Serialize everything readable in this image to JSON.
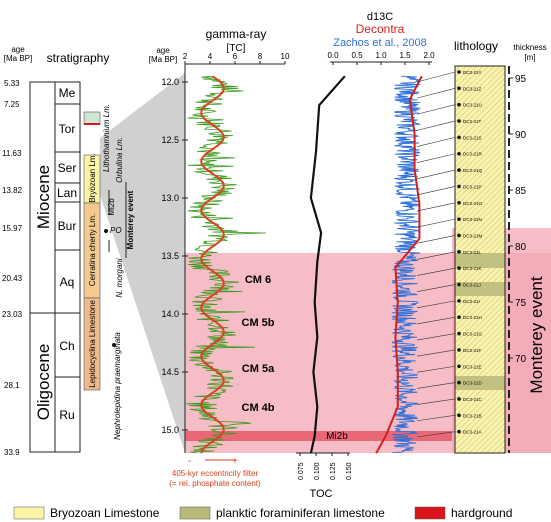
{
  "left_panel": {
    "age_header": [
      "age",
      "[Ma BP]"
    ],
    "title": "stratigraphy",
    "ages": [
      "5.33",
      "7.25",
      "11.63",
      "13.82",
      "15.97",
      "20.43",
      "23.03",
      "28.1",
      "33.9"
    ],
    "epochs": [
      "Miocene",
      "Oligocene"
    ],
    "stages": [
      "Me",
      "Tor",
      "Ser",
      "Lan",
      "Bur",
      "Aq",
      "Ch",
      "Ru"
    ],
    "units": [
      "Bryozoan Lm.",
      "Cerratina cherty Lm.",
      "Lepidocyclina Limestone"
    ],
    "unit_labels": [
      "Lithothamnium Lm.",
      "Orbulina Lm.",
      "Mi2b",
      "Monterey event",
      "PO",
      "N. morgani",
      "Nephrolepidina praemarginata"
    ]
  },
  "gamma_panel": {
    "title": "gamma-ray",
    "unit": "[TC]",
    "x_ticks": [
      "2",
      "4",
      "6",
      "8",
      "10"
    ],
    "age_header": [
      "age",
      "[Ma BP]"
    ],
    "age_ticks": [
      "12.0",
      "12.5",
      "13.0",
      "13.5",
      "14.0",
      "14.5",
      "15.0"
    ],
    "cm_labels": [
      "CM 6",
      "CM 5b",
      "CM 5a",
      "CM 4b"
    ],
    "filter_caption": "405-kyr eccentricity filter",
    "filter_subcaption": "(= rel. phosphate content)",
    "minus": "-",
    "plus": "+"
  },
  "d13c_panel": {
    "title": "d13C",
    "series_a": "Decontra",
    "series_b": "Zachos et al., 2008",
    "x_ticks": [
      "0.0",
      "0.5",
      "1.0",
      "1.5",
      "2.0"
    ],
    "mi2b": "Mi2b",
    "toc_ticks": [
      "0.075",
      "0.100",
      "0.125",
      "0.150"
    ],
    "toc_label": "TOC"
  },
  "lithology_panel": {
    "title": "lithology",
    "thickness_header": [
      "thickness",
      "[m]"
    ],
    "thickness_ticks": [
      "95",
      "90",
      "85",
      "80",
      "75",
      "70"
    ],
    "monterey": "Monterey event",
    "samples": [
      "DC3-21Y",
      "DC3-21Z",
      "DC3-21U",
      "DC3-21T",
      "DC3-21S",
      "DC3-21R",
      "DC3-21Q",
      "DC3-21P",
      "DC3-21O",
      "DC3-21N",
      "DC3-21M",
      "DC3-21L",
      "DC3-21K",
      "DC3-21J",
      "DC3-21I",
      "DC3-21H",
      "DC3-21G",
      "DC3-21F",
      "DC3-21E",
      "DC3-21D",
      "DC3-21C",
      "DC3-21B",
      "DC3-21A"
    ]
  },
  "legend": [
    {
      "label": "Bryozoan Limestone",
      "color": "#fbf3a6"
    },
    {
      "label": "planktic foraminiferan limestone",
      "color": "#b9b97a"
    },
    {
      "label": "hardground",
      "color": "#d9141c"
    }
  ],
  "colors": {
    "monterey_band": "#f4a7b4",
    "mi2b_band": "#e8586a",
    "gamma": "#3a9a1e",
    "filter": "#d9421e",
    "decontra": "#d41e1e",
    "zachos": "#2e6fd8",
    "toc": "#111111",
    "wedge": "#cfcfcf"
  },
  "chart_data": [
    {
      "type": "line",
      "title": "gamma-ray",
      "xlabel": "[TC]",
      "ylabel": "age [Ma BP]",
      "xlim": [
        2,
        10
      ],
      "ylim": [
        11.9,
        15.2
      ],
      "series": [
        {
          "name": "405-kyr eccentricity filter",
          "note": "sinusoidal filter curve, approx. 3.5–5 TC"
        }
      ]
    },
    {
      "type": "line",
      "title": "d13C",
      "xlim": [
        0.0,
        2.0
      ],
      "series": [
        {
          "name": "Decontra",
          "y": [
            11.95,
            12.15,
            12.45,
            12.75,
            13.05,
            13.35,
            13.6,
            13.9,
            14.2,
            14.5,
            14.8,
            15.05,
            15.2
          ],
          "x": [
            1.85,
            1.6,
            1.7,
            1.7,
            1.8,
            1.8,
            1.3,
            1.35,
            1.3,
            1.35,
            1.35,
            1.1,
            0.9
          ]
        },
        {
          "name": "Zachos et al., 2008",
          "note": "high-frequency record, ~1.2–1.9"
        }
      ]
    },
    {
      "type": "line",
      "title": "TOC",
      "xlim": [
        0.075,
        0.15
      ],
      "series": [
        {
          "name": "TOC",
          "y": [
            11.95,
            12.2,
            12.6,
            13.0,
            13.3,
            13.55,
            13.9,
            14.2,
            14.5,
            14.8,
            15.05,
            15.2
          ],
          "x": [
            0.145,
            0.105,
            0.1,
            0.092,
            0.108,
            0.102,
            0.098,
            0.102,
            0.096,
            0.102,
            0.098,
            0.092
          ]
        }
      ]
    }
  ]
}
